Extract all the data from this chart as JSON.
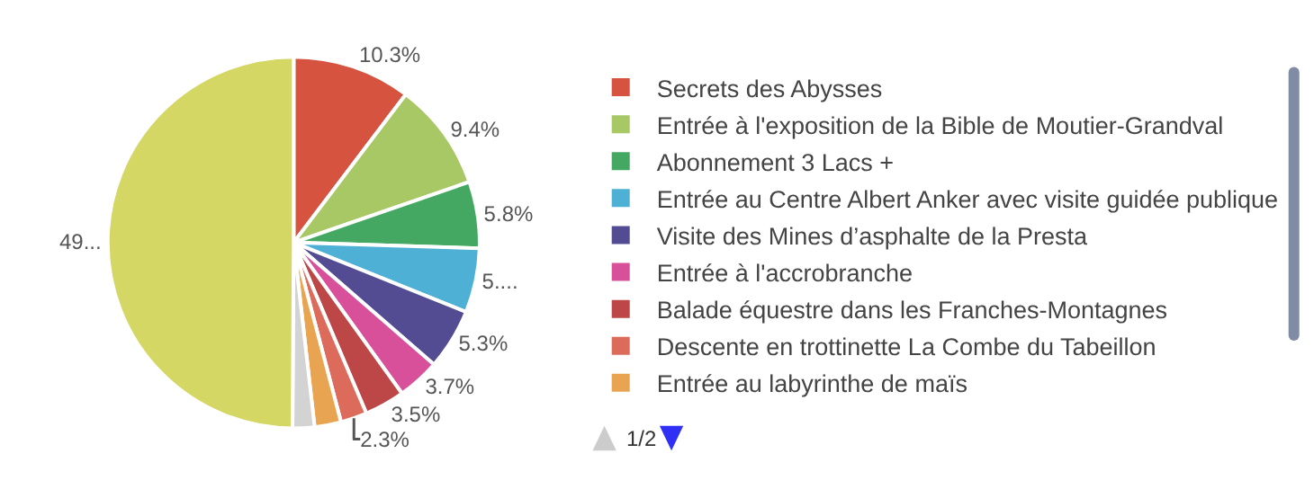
{
  "chart_data": {
    "type": "pie",
    "categories": [
      "Secrets des Abysses",
      "Entrée à l'exposition de la Bible de Moutier-Grandval",
      "Abonnement 3 Lacs +",
      "Entrée au Centre Albert Anker avec visite guidée publique",
      "Visite des Mines d’asphalte de la Presta",
      "Entrée à l'accrobranche",
      "Balade équestre dans les Franches-Montagnes",
      "Descente en trottinette La Combe du Tabeillon",
      "Entrée au labyrinthe de maïs",
      null,
      null
    ],
    "values": [
      10.3,
      9.4,
      5.8,
      5.6,
      5.3,
      3.7,
      3.5,
      2.3,
      2.3,
      1.9,
      49.9
    ],
    "value_labels": [
      "10.3%",
      "9.4%",
      "5.8%",
      "5....",
      "5.3%",
      "3.7%",
      "3.5%",
      "2.3%",
      null,
      null,
      "49..."
    ],
    "colors": [
      "#d6533f",
      "#a8c765",
      "#45a862",
      "#4fb0d6",
      "#544c93",
      "#d8509a",
      "#bd4646",
      "#dd6b5b",
      "#e8a451",
      "#d3d3d3",
      "#d4d763"
    ],
    "legend": "right",
    "annotations": [
      "1/2"
    ]
  }
}
